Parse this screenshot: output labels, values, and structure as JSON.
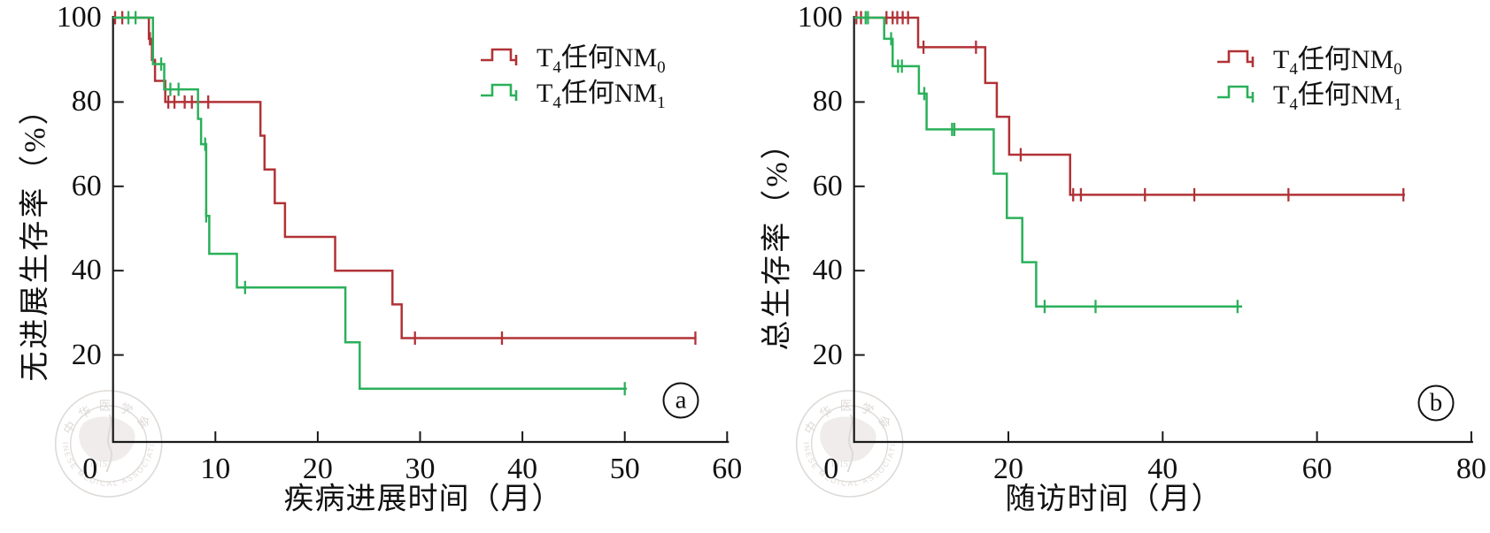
{
  "colors": {
    "group0": "#b13236",
    "group1": "#2bb05a",
    "axis": "#1a1a1a",
    "text": "#111111",
    "watermark": "#c9c2bd"
  },
  "legend": {
    "items": [
      {
        "pre": "T",
        "sub1": "4",
        "mid": "任何NM",
        "sub2": "0"
      },
      {
        "pre": "T",
        "sub1": "4",
        "mid": "任何NM",
        "sub2": "1"
      }
    ]
  },
  "watermark": {
    "top": "中华医学会",
    "year": "1915",
    "bottom": "CHINESE MEDICAL ASSOCIATION"
  },
  "panels": [
    {
      "letter": "a",
      "xlabel": "疾病进展时间（月）",
      "ylabel": "无进展生存率（%）"
    },
    {
      "letter": "b",
      "xlabel": "随访时间（月）",
      "ylabel": "总生存率（%）"
    }
  ],
  "chart_data": [
    {
      "type": "line",
      "subtype": "kaplan-meier-step",
      "panel": "a",
      "title": "",
      "xlabel": "疾病进展时间（月）",
      "ylabel": "无进展生存率（%）",
      "xlim": [
        0,
        60
      ],
      "ylim": [
        0,
        100
      ],
      "xticks": [
        0,
        10,
        20,
        30,
        40,
        50,
        60
      ],
      "yticks": [
        20,
        40,
        60,
        80,
        100
      ],
      "grid": false,
      "legend_position": "top-right",
      "series": [
        {
          "name": "T4任何NM0",
          "color": "#b13236",
          "steps": [
            [
              0,
              100
            ],
            [
              3.5,
              95
            ],
            [
              3.8,
              90
            ],
            [
              4.1,
              85
            ],
            [
              5.1,
              80
            ],
            [
              14.4,
              72
            ],
            [
              14.8,
              64
            ],
            [
              15.8,
              56
            ],
            [
              16.8,
              48
            ],
            [
              21.7,
              40
            ],
            [
              27.3,
              32
            ],
            [
              28.2,
              24
            ],
            [
              57.0,
              24
            ]
          ],
          "censors": [
            [
              0.2,
              100
            ],
            [
              0.9,
              100
            ],
            [
              3.6,
              95
            ],
            [
              5.4,
              80
            ],
            [
              6.0,
              80
            ],
            [
              7.0,
              80
            ],
            [
              7.7,
              80
            ],
            [
              9.3,
              80
            ],
            [
              29.5,
              24
            ],
            [
              38.0,
              24
            ],
            [
              56.9,
              24
            ]
          ]
        },
        {
          "name": "T4任何NM1",
          "color": "#2bb05a",
          "steps": [
            [
              0,
              100
            ],
            [
              3.9,
              89
            ],
            [
              5.0,
              83
            ],
            [
              8.3,
              76
            ],
            [
              8.6,
              70
            ],
            [
              9.1,
              53
            ],
            [
              9.4,
              44
            ],
            [
              12.1,
              36
            ],
            [
              22.7,
              23
            ],
            [
              24.1,
              12
            ],
            [
              50.2,
              12
            ]
          ],
          "censors": [
            [
              1.5,
              100
            ],
            [
              2.2,
              100
            ],
            [
              4.7,
              89
            ],
            [
              5.6,
              83
            ],
            [
              6.4,
              83
            ],
            [
              9.0,
              70
            ],
            [
              9.1,
              53
            ],
            [
              12.9,
              36
            ],
            [
              50.0,
              12
            ]
          ]
        }
      ]
    },
    {
      "type": "line",
      "subtype": "kaplan-meier-step",
      "panel": "b",
      "title": "",
      "xlabel": "随访时间（月）",
      "ylabel": "总生存率（%）",
      "xlim": [
        0,
        80
      ],
      "ylim": [
        0,
        100
      ],
      "xticks": [
        0,
        20,
        40,
        60,
        80
      ],
      "yticks": [
        20,
        40,
        60,
        80,
        100
      ],
      "grid": false,
      "legend_position": "top-right",
      "series": [
        {
          "name": "T4任何NM0",
          "color": "#b13236",
          "steps": [
            [
              0,
              100
            ],
            [
              8.3,
              93
            ],
            [
              17.0,
              84.5
            ],
            [
              18.5,
              76.5
            ],
            [
              20.1,
              67.5
            ],
            [
              28.0,
              58
            ],
            [
              71.4,
              58
            ]
          ],
          "censors": [
            [
              0.3,
              100
            ],
            [
              0.9,
              100
            ],
            [
              4.2,
              100
            ],
            [
              5.0,
              100
            ],
            [
              5.6,
              100
            ],
            [
              6.3,
              100
            ],
            [
              7.0,
              100
            ],
            [
              9.0,
              93
            ],
            [
              15.8,
              93
            ],
            [
              21.6,
              67.5
            ],
            [
              28.4,
              58
            ],
            [
              29.4,
              58
            ],
            [
              37.7,
              58
            ],
            [
              44.1,
              58
            ],
            [
              56.3,
              58
            ],
            [
              71.2,
              58
            ]
          ]
        },
        {
          "name": "T4任何NM1",
          "color": "#2bb05a",
          "steps": [
            [
              0,
              100
            ],
            [
              3.9,
              95
            ],
            [
              5.0,
              88.5
            ],
            [
              8.4,
              82
            ],
            [
              9.4,
              73.5
            ],
            [
              18.1,
              63
            ],
            [
              19.8,
              52.5
            ],
            [
              21.8,
              42
            ],
            [
              23.6,
              31.5
            ],
            [
              50.3,
              31.5
            ]
          ],
          "censors": [
            [
              1.5,
              100
            ],
            [
              1.8,
              100
            ],
            [
              4.8,
              95
            ],
            [
              5.7,
              88.5
            ],
            [
              6.2,
              88.5
            ],
            [
              9.1,
              82
            ],
            [
              12.7,
              73.5
            ],
            [
              13.0,
              73.5
            ],
            [
              24.7,
              31.5
            ],
            [
              31.3,
              31.5
            ],
            [
              49.7,
              31.5
            ]
          ]
        }
      ]
    }
  ]
}
